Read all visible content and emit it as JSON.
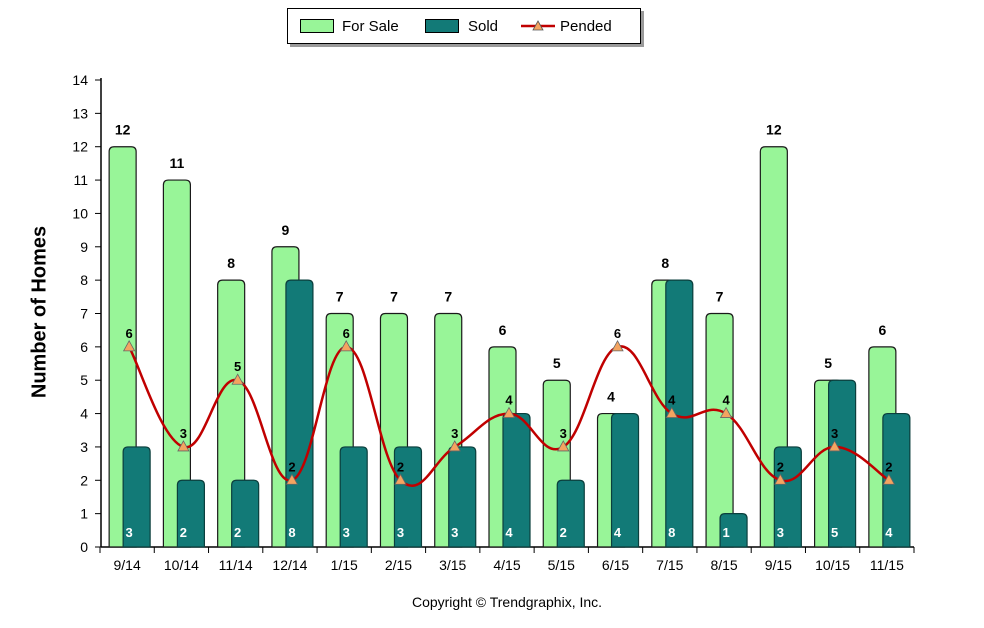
{
  "chart_data": {
    "type": "bar",
    "categories": [
      "9/14",
      "10/14",
      "11/14",
      "12/14",
      "1/15",
      "2/15",
      "3/15",
      "4/15",
      "5/15",
      "6/15",
      "7/15",
      "8/15",
      "9/15",
      "10/15",
      "11/15"
    ],
    "series": [
      {
        "name": "For Sale",
        "type": "bar",
        "color": "#98f598",
        "values": [
          12,
          11,
          8,
          9,
          7,
          7,
          7,
          6,
          5,
          4,
          8,
          7,
          12,
          5,
          6
        ]
      },
      {
        "name": "Sold",
        "type": "bar",
        "color": "#127a77",
        "values": [
          3,
          2,
          2,
          8,
          3,
          3,
          3,
          4,
          2,
          4,
          8,
          1,
          3,
          5,
          4
        ]
      },
      {
        "name": "Pended",
        "type": "line",
        "color": "#c00000",
        "marker_color": "#f4a460",
        "values": [
          6,
          3,
          5,
          2,
          6,
          2,
          3,
          4,
          3,
          6,
          4,
          4,
          2,
          3,
          2
        ]
      }
    ],
    "ylabel": "Number of Homes",
    "xlabel": "",
    "ylim": [
      0,
      14
    ],
    "yticks": [
      0,
      1,
      2,
      3,
      4,
      5,
      6,
      7,
      8,
      9,
      10,
      11,
      12,
      13,
      14
    ],
    "legend_position": "top-center",
    "grid": false
  },
  "copyright": "Copyright © Trendgraphix, Inc."
}
